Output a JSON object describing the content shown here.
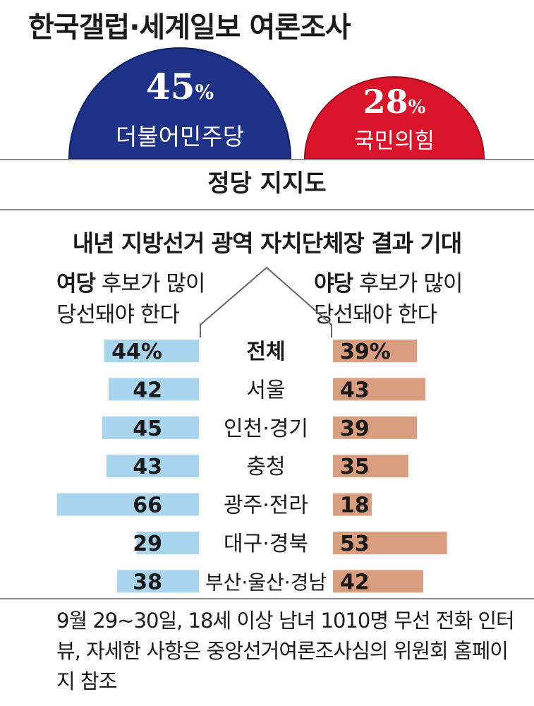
{
  "header": {
    "title": "한국갤럽·세계일보 여론조사"
  },
  "party_support": {
    "label": "정당 지지도",
    "parties": [
      {
        "name": "더불어민주당",
        "value": 45,
        "unit": "%",
        "color": "#1e3388"
      },
      {
        "name": "국민의힘",
        "value": 28,
        "unit": "%",
        "color": "#d9132a"
      }
    ]
  },
  "chart_data": {
    "type": "bar",
    "title": "내년 지방선거 광역 자치단체장 결과 기대",
    "categories": [
      "전체",
      "서울",
      "인천·경기",
      "충청",
      "광주·전라",
      "대구·경북",
      "부산·울산·경남"
    ],
    "unit": "%",
    "series": [
      {
        "name_bold": "여당",
        "name_rest": " 후보가 많이",
        "name_line2": "당선돼야 한다",
        "values": [
          44,
          42,
          45,
          43,
          66,
          29,
          38
        ],
        "labels": [
          "44%",
          "42",
          "45",
          "43",
          "66",
          "29",
          "38"
        ],
        "color": "#a8d4ee"
      },
      {
        "name_bold": "야당",
        "name_rest": " 후보가 많이",
        "name_line2": "당선돼야 한다",
        "values": [
          39,
          43,
          39,
          35,
          18,
          53,
          42
        ],
        "labels": [
          "39%",
          "43",
          "39",
          "35",
          "18",
          "53",
          "42"
        ],
        "color": "#d99e7f"
      }
    ]
  },
  "footer": {
    "note": "9월 29~30일, 18세 이상 남녀 1010명 무선 전화 인터뷰, 자세한 사항은 중앙선거여론조사심의 위원회 홈페이지 참조"
  }
}
